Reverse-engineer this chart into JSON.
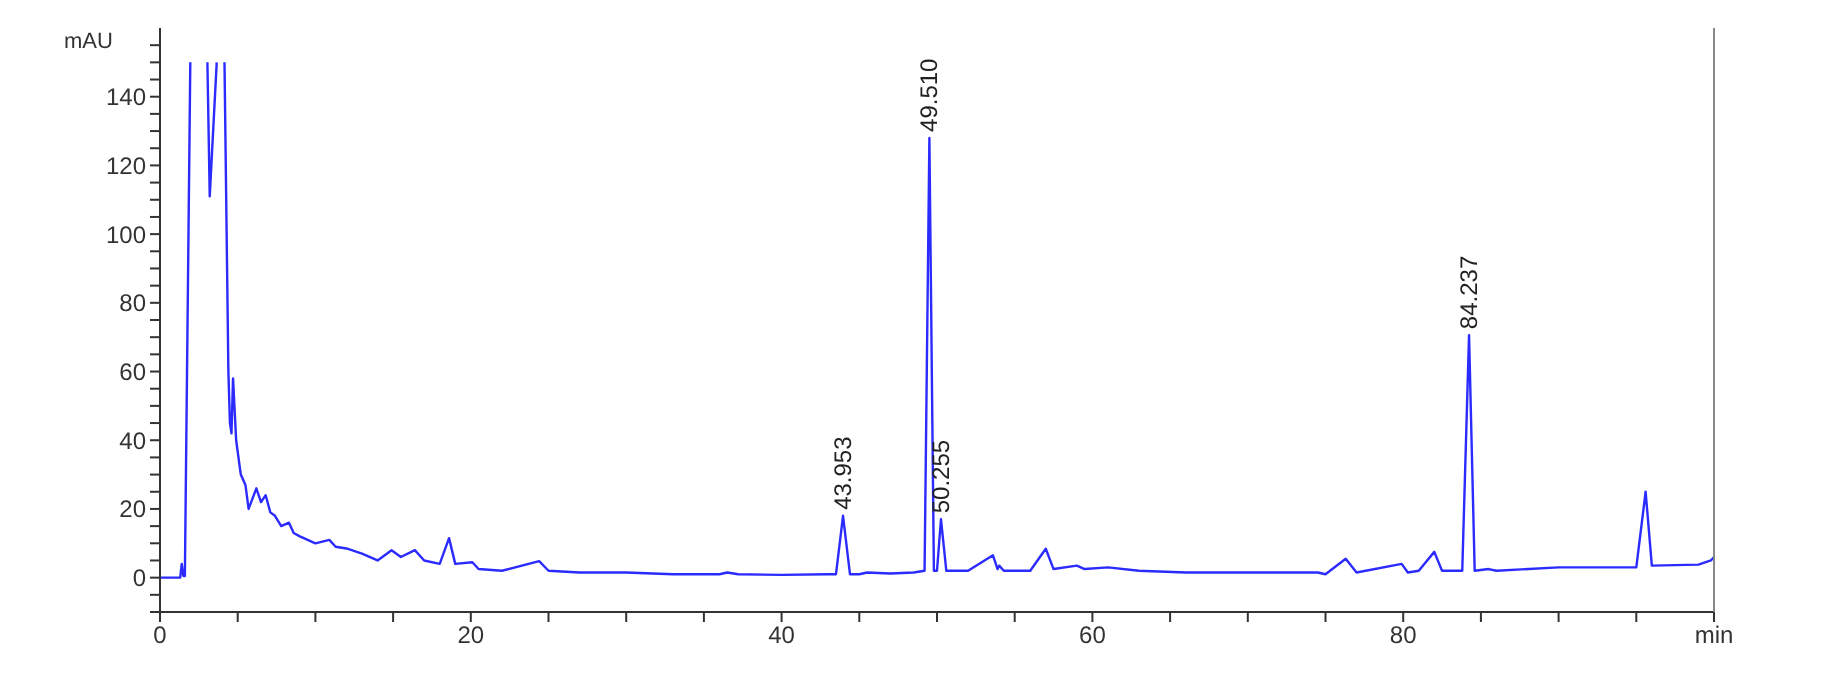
{
  "chart_data": {
    "type": "line",
    "ylabel": "mAU",
    "xlabel": "min",
    "xlim": [
      0,
      100
    ],
    "ylim": [
      -10,
      160
    ],
    "xticks": [
      0,
      {
        "value": 5,
        "label": null
      },
      {
        "value": 10,
        "label": null
      },
      {
        "value": 15,
        "label": null
      },
      20,
      {
        "value": 25,
        "label": null
      },
      {
        "value": 30,
        "label": null
      },
      {
        "value": 35,
        "label": null
      },
      40,
      {
        "value": 45,
        "label": null
      },
      {
        "value": 50,
        "label": null
      },
      {
        "value": 55,
        "label": null
      },
      60,
      {
        "value": 65,
        "label": null
      },
      {
        "value": 70,
        "label": null
      },
      {
        "value": 75,
        "label": null
      },
      80,
      {
        "value": 85,
        "label": null
      },
      {
        "value": 90,
        "label": null
      },
      {
        "value": 95,
        "label": null
      }
    ],
    "yticks": [
      {
        "value": -10,
        "label": null
      },
      {
        "value": -5,
        "label": null
      },
      0,
      {
        "value": 5,
        "label": null
      },
      {
        "value": 10,
        "label": null
      },
      {
        "value": 15,
        "label": null
      },
      20,
      {
        "value": 25,
        "label": null
      },
      {
        "value": 30,
        "label": null
      },
      {
        "value": 35,
        "label": null
      },
      40,
      {
        "value": 45,
        "label": null
      },
      {
        "value": 50,
        "label": null
      },
      {
        "value": 55,
        "label": null
      },
      60,
      {
        "value": 65,
        "label": null
      },
      {
        "value": 70,
        "label": null
      },
      {
        "value": 75,
        "label": null
      },
      80,
      {
        "value": 85,
        "label": null
      },
      {
        "value": 90,
        "label": null
      },
      {
        "value": 95,
        "label": null
      },
      100,
      {
        "value": 105,
        "label": null
      },
      {
        "value": 110,
        "label": null
      },
      {
        "value": 115,
        "label": null
      },
      120,
      {
        "value": 125,
        "label": null
      },
      {
        "value": 130,
        "label": null
      },
      {
        "value": 135,
        "label": null
      },
      140,
      {
        "value": 145,
        "label": null
      },
      {
        "value": 150,
        "label": null
      },
      {
        "value": 155,
        "label": null
      }
    ],
    "marker": "none",
    "line_style": "solid",
    "series": [
      {
        "color": "#2b2bff",
        "x": [
          0,
          1.3,
          1.4,
          1.5,
          1.6,
          1.95,
          2.5,
          3.05,
          3.2,
          3.65,
          3.9,
          4.15,
          4.4,
          4.5,
          4.6,
          4.7,
          4.9,
          5.2,
          5.5,
          5.7,
          6.2,
          6.5,
          6.8,
          7.1,
          7.4,
          7.8,
          8.3,
          8.6,
          9.0,
          9.5,
          10.0,
          10.9,
          11.3,
          12,
          13,
          14.0,
          14.9,
          15.5,
          16.4,
          17,
          18.0,
          18.6,
          19.0,
          20.1,
          20.5,
          22,
          24.4,
          25,
          27,
          30,
          33,
          36,
          36.5,
          37.2,
          40,
          43,
          43.5,
          43.953,
          44.4,
          45,
          45.5,
          47,
          48.5,
          49.2,
          49.51,
          49.8,
          50.0,
          50.255,
          50.6,
          52,
          53.6,
          53.9,
          54.0,
          54.3,
          56,
          57.0,
          57.5,
          59.0,
          59.5,
          61,
          63,
          66,
          70,
          74.5,
          75,
          76.3,
          77,
          79.9,
          80.3,
          81,
          82.0,
          82.5,
          83.8,
          84.237,
          84.6,
          85.5,
          86,
          90,
          95,
          95.6,
          96,
          99,
          99.8,
          100
        ],
        "values": [
          0,
          0,
          4,
          0.5,
          0.5,
          150,
          null,
          150,
          111,
          150,
          null,
          150,
          60,
          45,
          42,
          58,
          40,
          30,
          27,
          20,
          26,
          22,
          24,
          19,
          18,
          15,
          16,
          13,
          12,
          11,
          10,
          11,
          9,
          8.5,
          7,
          5,
          8,
          6,
          8,
          5,
          4,
          11.5,
          4,
          4.5,
          2.5,
          2,
          4.8,
          2,
          1.5,
          1.5,
          1,
          1,
          1.5,
          1,
          0.8,
          1,
          1,
          18,
          1,
          1,
          1.5,
          1.2,
          1.5,
          2,
          128,
          2,
          2,
          17,
          2,
          2,
          6.5,
          2.5,
          3.5,
          2,
          2,
          8.4,
          2.5,
          3.5,
          2.5,
          3,
          2,
          1.5,
          1.5,
          1.5,
          1,
          5.5,
          1.5,
          4,
          1.5,
          2,
          7.5,
          2,
          2,
          70.6,
          2,
          2.5,
          2,
          3,
          3,
          25,
          3.5,
          3.8,
          5,
          6
        ]
      }
    ],
    "annotations": [
      {
        "text": "43.953",
        "x": 43.953,
        "y": 18
      },
      {
        "text": "49.510",
        "x": 49.51,
        "y": 128
      },
      {
        "text": "50.255",
        "x": 50.255,
        "y": 17
      },
      {
        "text": "84.237",
        "x": 84.237,
        "y": 70.6
      }
    ]
  }
}
